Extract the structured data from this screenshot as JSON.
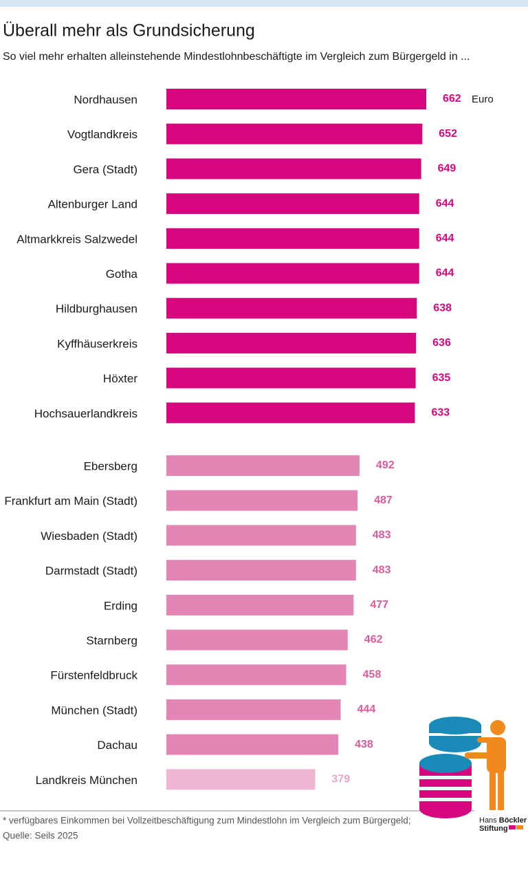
{
  "chart_data": {
    "type": "bar",
    "title": "Überall mehr als Grundsicherung",
    "subtitle": "So viel mehr erhalten alleinstehende Mindestlohnbeschäftigte im Vergleich zum Bürgergeld in ...",
    "unit_label": "Euro",
    "groups": [
      {
        "categories": [
          "Nordhausen",
          "Vogtlandkreis",
          "Gera (Stadt)",
          "Altenburger Land",
          "Altmarkkreis Salzwedel",
          "Gotha",
          "Hildburghausen",
          "Kyffhäuserkreis",
          "Höxter",
          "Hochsauerlandkreis"
        ],
        "values": [
          662,
          652,
          649,
          644,
          644,
          644,
          638,
          636,
          635,
          633
        ],
        "colors": [
          "#d6067e",
          "#d6067e",
          "#d6067e",
          "#d6067e",
          "#d6067e",
          "#d6067e",
          "#d6067e",
          "#d6067e",
          "#d6067e",
          "#d6067e"
        ],
        "label_colors": [
          "#d6067e",
          "#d6067e",
          "#d6067e",
          "#d6067e",
          "#d6067e",
          "#d6067e",
          "#d6067e",
          "#d6067e",
          "#d6067e",
          "#d6067e"
        ]
      },
      {
        "categories": [
          "Ebersberg",
          "Frankfurt am Main (Stadt)",
          "Wiesbaden (Stadt)",
          "Darmstadt (Stadt)",
          "Erding",
          "Starnberg",
          "Fürstenfeldbruck",
          "München (Stadt)",
          "Dachau",
          "Landkreis München"
        ],
        "values": [
          492,
          487,
          483,
          483,
          477,
          462,
          458,
          444,
          438,
          379
        ],
        "colors": [
          "#e486b5",
          "#e486b5",
          "#e486b5",
          "#e486b5",
          "#e486b5",
          "#e486b5",
          "#e486b5",
          "#e486b5",
          "#e486b5",
          "#f0b5d3"
        ],
        "label_colors": [
          "#dc5a9a",
          "#dc5a9a",
          "#dc5a9a",
          "#dc5a9a",
          "#dc5a9a",
          "#dc5a9a",
          "#dc5a9a",
          "#dc5a9a",
          "#dc5a9a",
          "#e9a2c7"
        ]
      }
    ],
    "footnote": "* verfügbares Einkommen bei Vollzeitbeschäftigung zum Mindestlohn im Vergleich zum Bürgergeld;",
    "source": "Quelle: Seils 2025",
    "logo": [
      "Hans",
      "Böckler",
      "Stiftung"
    ]
  }
}
